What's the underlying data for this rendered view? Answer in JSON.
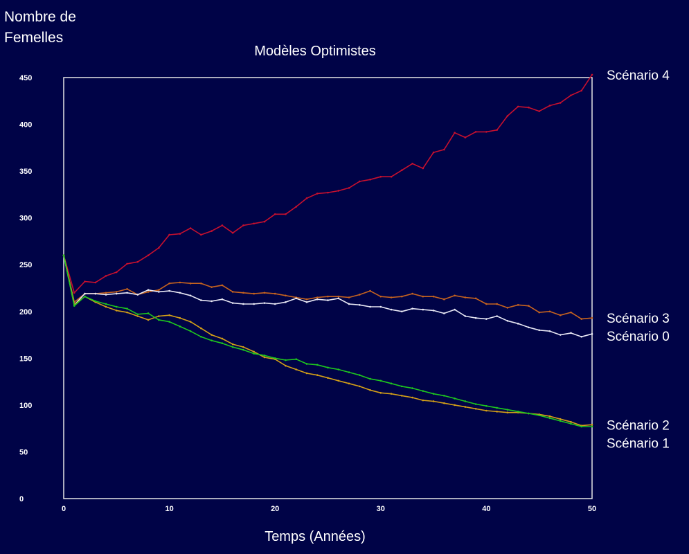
{
  "chart_data": {
    "type": "line",
    "title": "Modèles Optimistes",
    "ylabel": "Nombre de Femelles",
    "xlabel": "Temps (Années)",
    "xlim": [
      0,
      50
    ],
    "ylim": [
      0,
      450
    ],
    "xticks": [
      0,
      10,
      20,
      30,
      40,
      50
    ],
    "yticks": [
      0,
      50,
      100,
      150,
      200,
      250,
      300,
      350,
      400,
      450
    ],
    "grid": false,
    "legend": "right",
    "background": "#000347",
    "x": [
      0,
      1,
      2,
      3,
      4,
      5,
      6,
      7,
      8,
      9,
      10,
      11,
      12,
      13,
      14,
      15,
      16,
      17,
      18,
      19,
      20,
      21,
      22,
      23,
      24,
      25,
      26,
      27,
      28,
      29,
      30,
      31,
      32,
      33,
      34,
      35,
      36,
      37,
      38,
      39,
      40,
      41,
      42,
      43,
      44,
      45,
      46,
      47,
      48,
      49,
      50
    ],
    "series": [
      {
        "name": "Scénario 4",
        "color": "#c8102e",
        "values": [
          260,
          220,
          232,
          231,
          238,
          242,
          251,
          253,
          260,
          268,
          282,
          283,
          289,
          282,
          286,
          292,
          284,
          292,
          294,
          296,
          304,
          304,
          312,
          321,
          326,
          327,
          329,
          332,
          339,
          341,
          344,
          344,
          351,
          358,
          353,
          370,
          373,
          391,
          386,
          392,
          392,
          394,
          409,
          419,
          418,
          414,
          420,
          423,
          431,
          436,
          453
        ]
      },
      {
        "name": "Scénario 3",
        "color": "#c8641e",
        "values": [
          260,
          210,
          219,
          219,
          220,
          221,
          224,
          218,
          221,
          223,
          230,
          231,
          230,
          230,
          226,
          228,
          221,
          220,
          219,
          220,
          219,
          217,
          215,
          213,
          215,
          216,
          216,
          215,
          218,
          222,
          216,
          215,
          216,
          219,
          216,
          216,
          213,
          217,
          215,
          214,
          208,
          208,
          204,
          207,
          206,
          199,
          200,
          196,
          199,
          192,
          193
        ]
      },
      {
        "name": "Scénario 0",
        "color": "#e8e8f4",
        "values": [
          260,
          207,
          219,
          219,
          218,
          219,
          220,
          218,
          223,
          221,
          222,
          220,
          217,
          212,
          211,
          213,
          209,
          208,
          208,
          209,
          208,
          210,
          214,
          210,
          213,
          212,
          214,
          208,
          207,
          205,
          205,
          202,
          200,
          203,
          202,
          201,
          198,
          202,
          195,
          193,
          192,
          195,
          190,
          187,
          183,
          180,
          179,
          175,
          177,
          173,
          176
        ]
      },
      {
        "name": "Scénario 2",
        "color": "#d4a017",
        "values": [
          260,
          207,
          216,
          210,
          205,
          201,
          199,
          195,
          191,
          195,
          196,
          193,
          189,
          182,
          175,
          171,
          165,
          162,
          157,
          151,
          149,
          142,
          138,
          134,
          132,
          129,
          126,
          123,
          120,
          116,
          113,
          112,
          110,
          108,
          105,
          104,
          102,
          100,
          98,
          96,
          94,
          93,
          92,
          92,
          91,
          90,
          88,
          85,
          82,
          78,
          79
        ]
      },
      {
        "name": "Scénario 1",
        "color": "#1ec81e",
        "values": [
          260,
          206,
          216,
          211,
          208,
          205,
          203,
          197,
          198,
          191,
          189,
          184,
          179,
          173,
          169,
          166,
          162,
          159,
          155,
          153,
          150,
          148,
          149,
          144,
          143,
          140,
          138,
          135,
          132,
          128,
          126,
          123,
          120,
          118,
          115,
          112,
          110,
          107,
          104,
          101,
          99,
          97,
          95,
          93,
          91,
          89,
          86,
          83,
          80,
          77,
          77
        ]
      }
    ]
  }
}
